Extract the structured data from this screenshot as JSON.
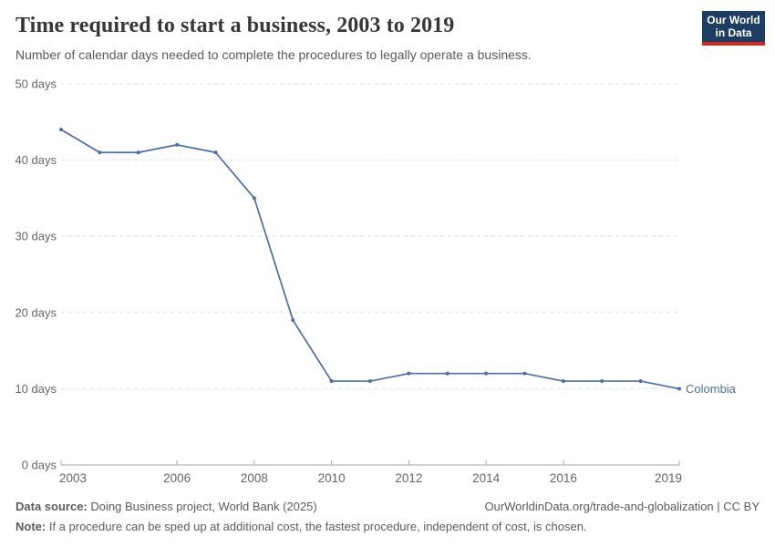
{
  "header": {
    "title": "Time required to start a business, 2003 to 2019",
    "subtitle": "Number of calendar days needed to complete the procedures to legally operate a business.",
    "logo": {
      "line1": "Our World",
      "line2": "in Data",
      "bg_color": "#1d3d63",
      "accent_color": "#cd2b1e"
    }
  },
  "chart_data": {
    "type": "line",
    "title": "Time required to start a business, 2003 to 2019",
    "xlabel": "",
    "ylabel": "",
    "x": [
      2003,
      2004,
      2005,
      2006,
      2007,
      2008,
      2009,
      2010,
      2011,
      2012,
      2013,
      2014,
      2015,
      2016,
      2017,
      2018,
      2019
    ],
    "series": [
      {
        "name": "Colombia",
        "color": "#4C6EA8",
        "values": [
          44,
          41,
          41,
          42,
          41,
          35,
          19,
          11,
          11,
          12,
          12,
          12,
          12,
          11,
          11,
          11,
          10
        ]
      }
    ],
    "x_ticks": [
      2003,
      2006,
      2008,
      2010,
      2012,
      2014,
      2016,
      2019
    ],
    "y_ticks": [
      0,
      10,
      20,
      30,
      40,
      50
    ],
    "y_tick_format": "{v} days",
    "xlim": [
      2003,
      2019
    ],
    "ylim": [
      0,
      50
    ],
    "grid": "horizontal-dashed",
    "legend": "end-of-line-label",
    "entity_label": "Colombia",
    "colors": {
      "grid": "#dedede",
      "axis": "#a9a9a9",
      "tick_label": "#666666"
    }
  },
  "footer": {
    "datasource_label": "Data source:",
    "datasource_value": " Doing Business project, World Bank (2025)",
    "credit": "OurWorldinData.org/trade-and-globalization | CC BY",
    "note_label": "Note:",
    "note_value": " If a procedure can be sped up at additional cost, the fastest procedure, independent of cost, is chosen."
  }
}
